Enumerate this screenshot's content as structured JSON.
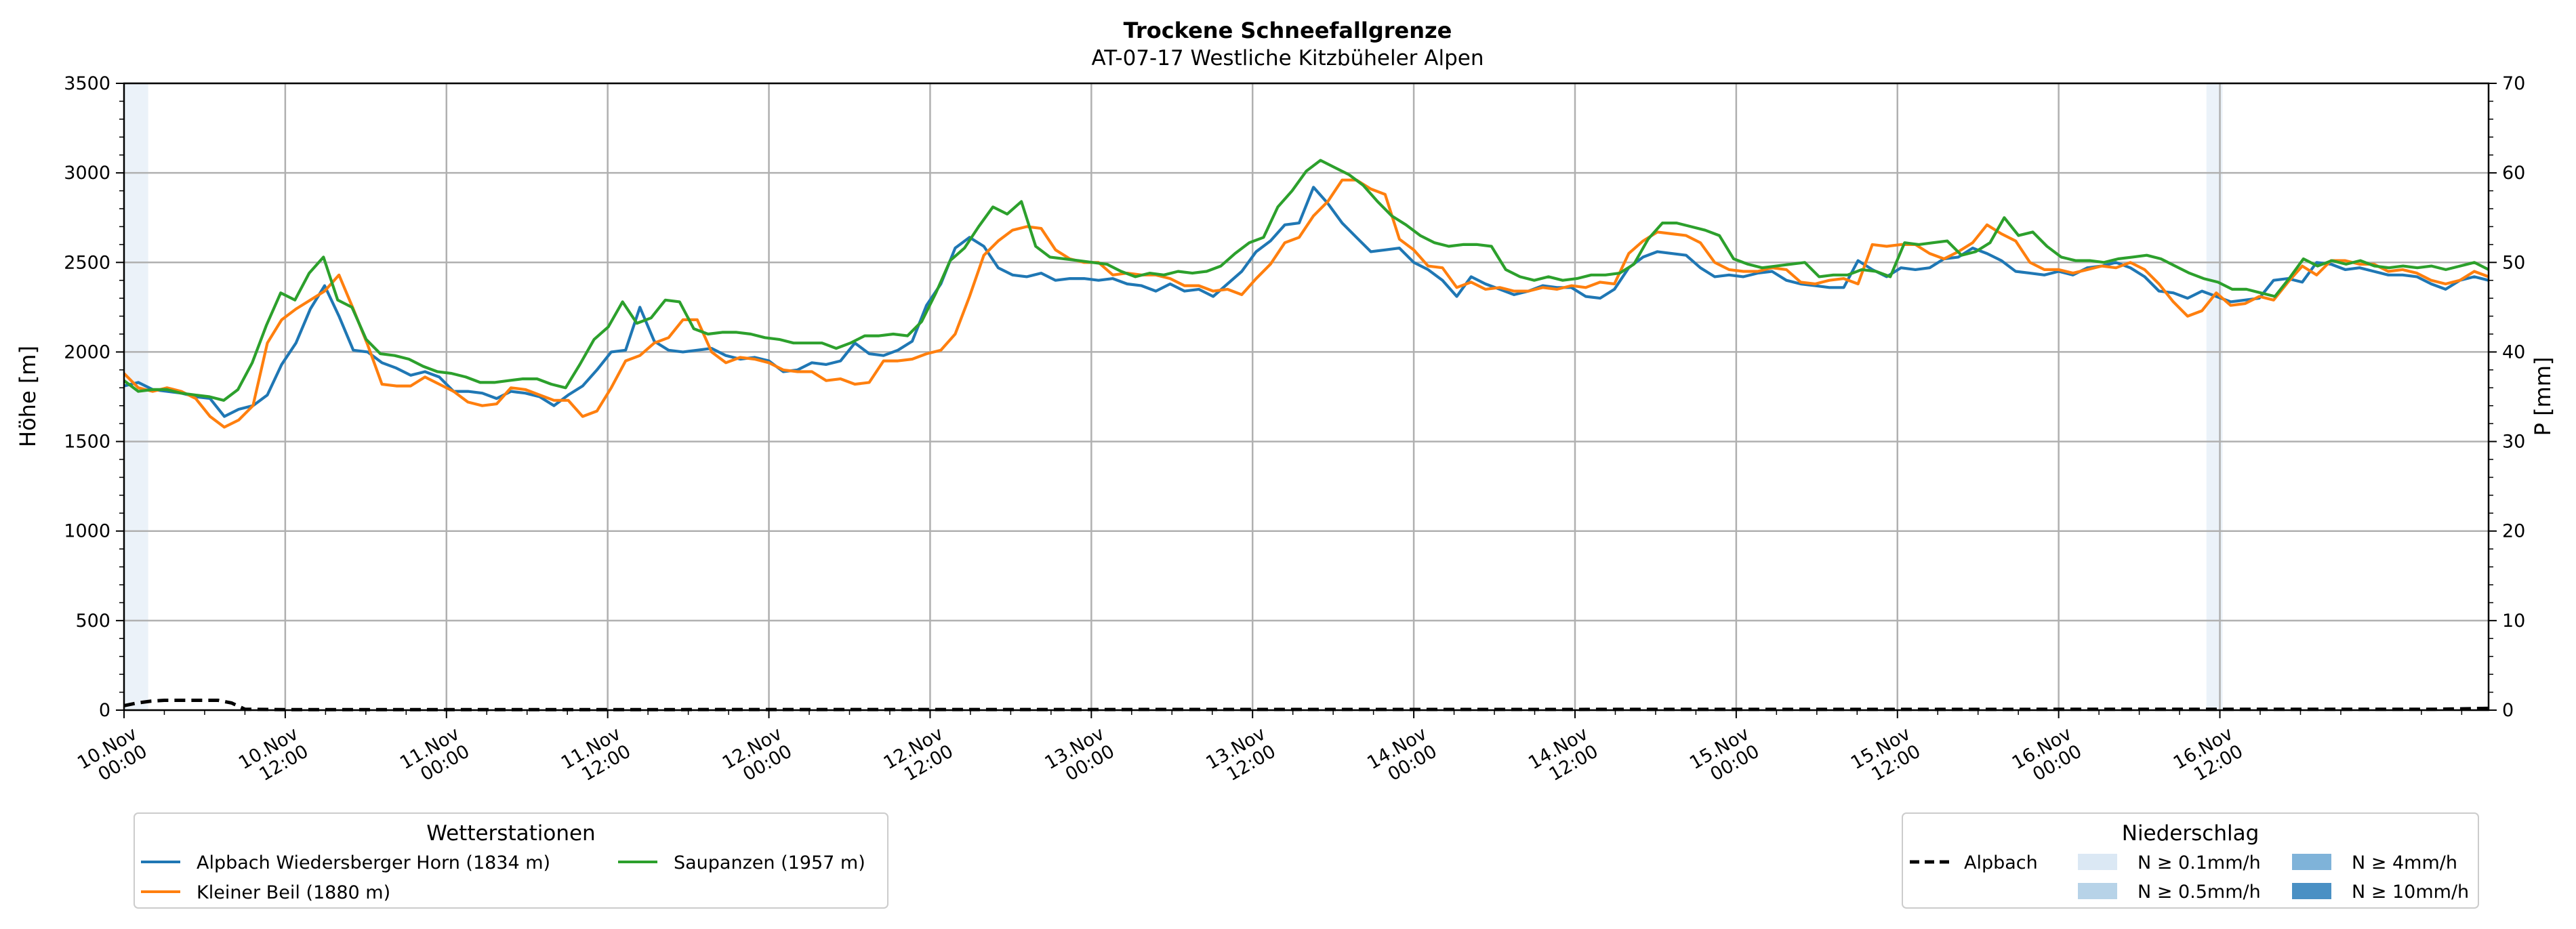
{
  "chart_data": {
    "type": "line",
    "title": "Trockene Schneefallgrenze",
    "subtitle": "AT-07-17 Westliche Kitzbüheler Alpen",
    "ylabel": "Höhe [m]",
    "y2label": "P [mm]",
    "ylim": [
      0,
      3500
    ],
    "y2lim": [
      0,
      70
    ],
    "yticks": [
      "0",
      "500",
      "1000",
      "1500",
      "2000",
      "2500",
      "3000",
      "3500"
    ],
    "y2ticks": [
      "0",
      "10",
      "20",
      "30",
      "40",
      "50",
      "60",
      "70"
    ],
    "xlim_hours": [
      0,
      176
    ],
    "x_ticks": [
      {
        "top": "10.Nov",
        "bottom": "00:00"
      },
      {
        "top": "10.Nov",
        "bottom": "12:00"
      },
      {
        "top": "11.Nov",
        "bottom": "00:00"
      },
      {
        "top": "11.Nov",
        "bottom": "12:00"
      },
      {
        "top": "12.Nov",
        "bottom": "00:00"
      },
      {
        "top": "12.Nov",
        "bottom": "12:00"
      },
      {
        "top": "13.Nov",
        "bottom": "00:00"
      },
      {
        "top": "13.Nov",
        "bottom": "12:00"
      },
      {
        "top": "14.Nov",
        "bottom": "00:00"
      },
      {
        "top": "14.Nov",
        "bottom": "12:00"
      },
      {
        "top": "15.Nov",
        "bottom": "00:00"
      },
      {
        "top": "15.Nov",
        "bottom": "12:00"
      },
      {
        "top": "16.Nov",
        "bottom": "00:00"
      },
      {
        "top": "16.Nov",
        "bottom": "12:00"
      }
    ],
    "grid": true,
    "series": [
      {
        "name": "Alpbach Wiedersberger Horn (1834 m)",
        "color": "#1f77b4",
        "values": [
          1810,
          1830,
          1790,
          1780,
          1770,
          1750,
          1740,
          1640,
          1680,
          1700,
          1760,
          1930,
          2050,
          2240,
          2370,
          2200,
          2010,
          2000,
          1940,
          1910,
          1870,
          1890,
          1860,
          1780,
          1780,
          1770,
          1740,
          1780,
          1770,
          1750,
          1700,
          1760,
          1810,
          1900,
          2000,
          2010,
          2250,
          2060,
          2010,
          2000,
          2010,
          2020,
          1980,
          1960,
          1970,
          1950,
          1890,
          1900,
          1940,
          1930,
          1950,
          2050,
          1990,
          1980,
          2010,
          2060,
          2260,
          2380,
          2580,
          2640,
          2590,
          2470,
          2430,
          2420,
          2440,
          2400,
          2410,
          2410,
          2400,
          2410,
          2380,
          2370,
          2340,
          2380,
          2340,
          2350,
          2310,
          2380,
          2450,
          2560,
          2620,
          2710,
          2720,
          2920,
          2830,
          2720,
          2640,
          2560,
          2570,
          2580,
          2500,
          2460,
          2400,
          2310,
          2420,
          2380,
          2350,
          2320,
          2340,
          2370,
          2360,
          2360,
          2310,
          2300,
          2350,
          2470,
          2530,
          2560,
          2550,
          2540,
          2470,
          2420,
          2430,
          2420,
          2440,
          2450,
          2400,
          2380,
          2370,
          2360,
          2360,
          2510,
          2460,
          2420,
          2470,
          2460,
          2470,
          2520,
          2530,
          2580,
          2550,
          2510,
          2450,
          2440,
          2430,
          2450,
          2430,
          2470,
          2480,
          2500,
          2470,
          2420,
          2340,
          2330,
          2300,
          2340,
          2310,
          2280,
          2290,
          2300,
          2400,
          2410,
          2390,
          2500,
          2490,
          2460,
          2470,
          2450,
          2430,
          2430,
          2420,
          2380,
          2350,
          2400,
          2420,
          2400
        ]
      },
      {
        "name": "Kleiner Beil (1880 m)",
        "color": "#ff7f0e",
        "values": [
          1880,
          1800,
          1780,
          1800,
          1780,
          1740,
          1640,
          1580,
          1620,
          1700,
          2050,
          2180,
          2240,
          2290,
          2340,
          2430,
          2240,
          2040,
          1820,
          1810,
          1810,
          1860,
          1820,
          1780,
          1720,
          1700,
          1710,
          1800,
          1790,
          1760,
          1730,
          1730,
          1640,
          1670,
          1800,
          1950,
          1980,
          2050,
          2080,
          2180,
          2180,
          2000,
          1940,
          1970,
          1960,
          1940,
          1900,
          1890,
          1890,
          1840,
          1850,
          1820,
          1830,
          1950,
          1950,
          1960,
          1990,
          2010,
          2100,
          2310,
          2540,
          2620,
          2680,
          2700,
          2690,
          2570,
          2520,
          2500,
          2500,
          2430,
          2440,
          2430,
          2430,
          2410,
          2370,
          2370,
          2340,
          2350,
          2320,
          2410,
          2490,
          2610,
          2640,
          2760,
          2840,
          2960,
          2960,
          2910,
          2880,
          2630,
          2570,
          2480,
          2470,
          2360,
          2390,
          2350,
          2360,
          2340,
          2340,
          2360,
          2350,
          2370,
          2360,
          2390,
          2380,
          2550,
          2620,
          2670,
          2660,
          2650,
          2610,
          2500,
          2460,
          2450,
          2450,
          2470,
          2460,
          2390,
          2380,
          2400,
          2410,
          2380,
          2600,
          2590,
          2600,
          2600,
          2550,
          2520,
          2560,
          2610,
          2710,
          2660,
          2620,
          2500,
          2460,
          2460,
          2440,
          2460,
          2480,
          2470,
          2500,
          2460,
          2380,
          2280,
          2200,
          2230,
          2330,
          2260,
          2270,
          2310,
          2290,
          2390,
          2480,
          2430,
          2510,
          2510,
          2490,
          2490,
          2450,
          2460,
          2440,
          2400,
          2380,
          2400,
          2450,
          2420
        ]
      },
      {
        "name": "Saupanzen (1957 m)",
        "color": "#2ca02c",
        "values": [
          1840,
          1780,
          1790,
          1790,
          1770,
          1760,
          1750,
          1730,
          1790,
          1940,
          2150,
          2330,
          2290,
          2440,
          2530,
          2290,
          2250,
          2070,
          1990,
          1980,
          1960,
          1920,
          1890,
          1880,
          1860,
          1830,
          1830,
          1840,
          1850,
          1850,
          1820,
          1800,
          1930,
          2070,
          2140,
          2280,
          2160,
          2190,
          2290,
          2280,
          2130,
          2100,
          2110,
          2110,
          2100,
          2080,
          2070,
          2050,
          2050,
          2050,
          2020,
          2050,
          2090,
          2090,
          2100,
          2090,
          2170,
          2330,
          2510,
          2580,
          2700,
          2810,
          2770,
          2840,
          2590,
          2530,
          2520,
          2510,
          2500,
          2490,
          2450,
          2420,
          2440,
          2430,
          2450,
          2440,
          2450,
          2480,
          2550,
          2610,
          2640,
          2810,
          2900,
          3010,
          3070,
          3030,
          2990,
          2930,
          2840,
          2760,
          2710,
          2650,
          2610,
          2590,
          2600,
          2600,
          2590,
          2460,
          2420,
          2400,
          2420,
          2400,
          2410,
          2430,
          2430,
          2440,
          2490,
          2630,
          2720,
          2720,
          2700,
          2680,
          2650,
          2520,
          2490,
          2470,
          2480,
          2490,
          2500,
          2420,
          2430,
          2430,
          2460,
          2450,
          2420,
          2610,
          2600,
          2610,
          2620,
          2540,
          2560,
          2610,
          2750,
          2650,
          2670,
          2590,
          2530,
          2510,
          2510,
          2500,
          2520,
          2530,
          2540,
          2520,
          2480,
          2440,
          2410,
          2390,
          2350,
          2350,
          2330,
          2310,
          2410,
          2520,
          2480,
          2510,
          2490,
          2510,
          2480,
          2470,
          2480,
          2470,
          2480,
          2460,
          2480,
          2500,
          2460
        ]
      }
    ],
    "precipitation": {
      "name": "Alpbach",
      "line_style": "dashed",
      "color": "#000000",
      "points": [
        [
          0,
          0.5
        ],
        [
          1,
          0.8
        ],
        [
          2,
          1
        ],
        [
          3,
          1.1
        ],
        [
          5,
          1.1
        ],
        [
          7,
          1.1
        ],
        [
          8,
          0.8
        ],
        [
          9,
          0.1
        ],
        [
          12,
          0.05
        ],
        [
          172,
          0.1
        ],
        [
          176,
          0.2
        ]
      ],
      "highlight_bands": [
        [
          0,
          1.8
        ],
        [
          155,
          156.2
        ]
      ]
    },
    "legends": {
      "stations": {
        "title": "Wetterstationen",
        "position": "bottom-left"
      },
      "precip": {
        "title": "Niederschlag",
        "position": "bottom-right",
        "items": [
          {
            "label": "Alpbach",
            "kind": "dashed-line",
            "color": "#000000"
          },
          {
            "label": "N ≥ 0.1mm/h",
            "kind": "patch",
            "color": "#dbe8f4"
          },
          {
            "label": "N ≥ 0.5mm/h",
            "kind": "patch",
            "color": "#b7d3e8"
          },
          {
            "label": "N ≥ 4mm/h",
            "kind": "patch",
            "color": "#7fb3d9"
          },
          {
            "label": "N ≥ 10mm/h",
            "kind": "patch",
            "color": "#4a90c4"
          }
        ]
      }
    }
  }
}
